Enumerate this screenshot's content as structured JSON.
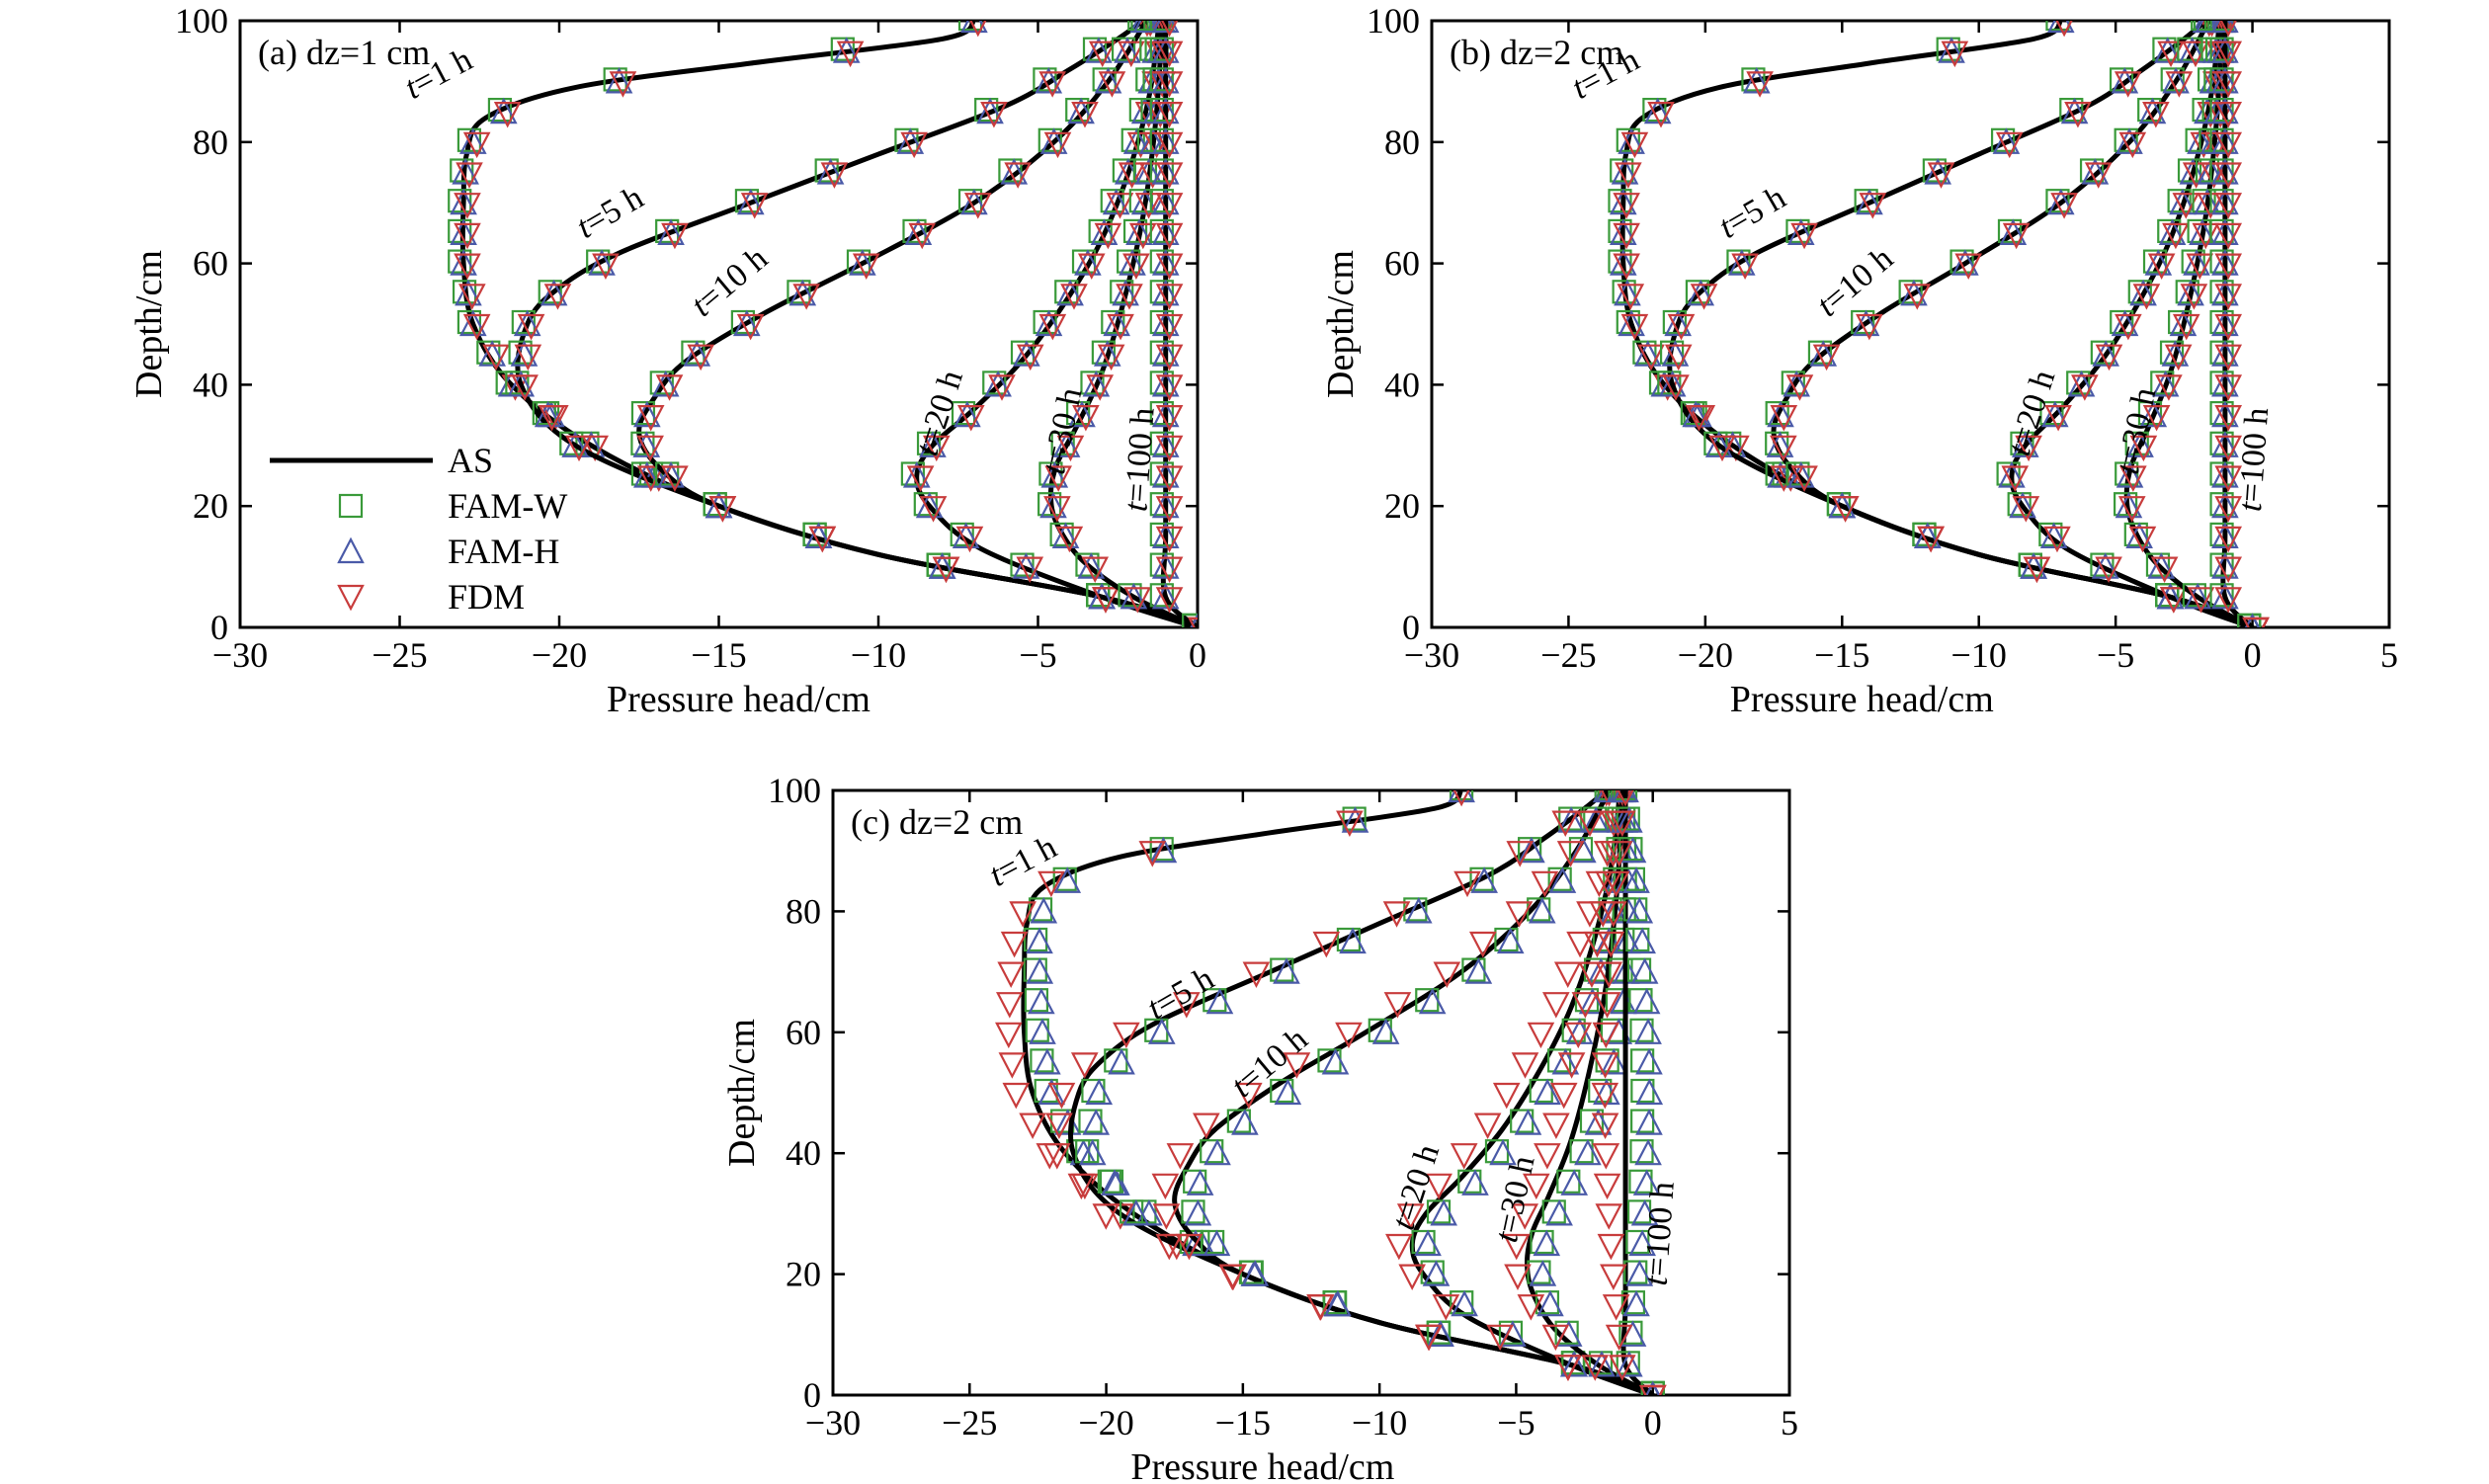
{
  "colors": {
    "AS": "#000000",
    "FAM-W": "#3a9a3a",
    "FAM-H": "#4a5aa8",
    "FDM": "#c83c3c"
  },
  "legend": [
    {
      "key": "AS",
      "label": "AS",
      "marker": "line"
    },
    {
      "key": "FAM-W",
      "label": "FAM-W",
      "marker": "square"
    },
    {
      "key": "FAM-H",
      "label": "FAM-H",
      "marker": "triangle-up"
    },
    {
      "key": "FDM",
      "label": "FDM",
      "marker": "triangle-down"
    }
  ],
  "chart_data": [
    {
      "type": "line",
      "panel": "a",
      "title": "(a) dz=1 cm",
      "xlabel": "Pressure head/cm",
      "ylabel": "Depth/cm",
      "xlim": [
        -30,
        0
      ],
      "ylim": [
        0,
        100
      ],
      "xticks": [
        "−30",
        "−25",
        "−20",
        "−15",
        "−10",
        "−5",
        "0"
      ],
      "yticks": [
        "0",
        "20",
        "40",
        "60",
        "80",
        "100"
      ],
      "curve_labels": [
        "t=1 h",
        "t=5 h",
        "t=10 h",
        "t=20 h",
        "t=30 h",
        "t=100 h"
      ],
      "series": [
        {
          "name": "t=1 h",
          "points": [
            [
              0,
              0
            ],
            [
              -3,
              5
            ],
            [
              -10,
              12
            ],
            [
              -15,
              20
            ],
            [
              -19,
              30
            ],
            [
              -21.5,
              40
            ],
            [
              -22.7,
              50
            ],
            [
              -23,
              60
            ],
            [
              -23,
              70
            ],
            [
              -22.9,
              78
            ],
            [
              -22.3,
              84
            ],
            [
              -19.5,
              89
            ],
            [
              -14,
              93
            ],
            [
              -8,
              97
            ],
            [
              -7,
              100
            ]
          ]
        },
        {
          "name": "t=5 h",
          "points": [
            [
              0,
              0
            ],
            [
              -3,
              5
            ],
            [
              -10,
              12
            ],
            [
              -15,
              20
            ],
            [
              -19.5,
              30
            ],
            [
              -21.2,
              40
            ],
            [
              -21,
              50
            ],
            [
              -20,
              56
            ],
            [
              -18,
              62
            ],
            [
              -14,
              70
            ],
            [
              -10,
              78
            ],
            [
              -6,
              86
            ],
            [
              -4,
              92
            ],
            [
              -2.5,
              97
            ],
            [
              -1.7,
              100
            ]
          ]
        },
        {
          "name": "t=10 h",
          "points": [
            [
              0,
              0
            ],
            [
              -3,
              5
            ],
            [
              -10,
              12
            ],
            [
              -15,
              20
            ],
            [
              -16.8,
              26
            ],
            [
              -17.5,
              32
            ],
            [
              -17,
              38
            ],
            [
              -16,
              44
            ],
            [
              -13.5,
              52
            ],
            [
              -10.5,
              60
            ],
            [
              -7,
              70
            ],
            [
              -4.5,
              80
            ],
            [
              -2.8,
              90
            ],
            [
              -1.6,
              100
            ]
          ]
        },
        {
          "name": "t=20 h",
          "points": [
            [
              0,
              0
            ],
            [
              -3,
              5
            ],
            [
              -6.8,
              13
            ],
            [
              -8.4,
              20
            ],
            [
              -8.8,
              25
            ],
            [
              -8.3,
              30
            ],
            [
              -7,
              36
            ],
            [
              -5.5,
              44
            ],
            [
              -4.1,
              54
            ],
            [
              -3,
              64
            ],
            [
              -2.1,
              76
            ],
            [
              -1.5,
              88
            ],
            [
              -1.2,
              100
            ]
          ]
        },
        {
          "name": "t=30 h",
          "points": [
            [
              0,
              0
            ],
            [
              -2,
              5
            ],
            [
              -3.6,
              11
            ],
            [
              -4.4,
              17
            ],
            [
              -4.6,
              22
            ],
            [
              -4.4,
              27
            ],
            [
              -3.8,
              33
            ],
            [
              -3,
              42
            ],
            [
              -2.3,
              54
            ],
            [
              -1.7,
              68
            ],
            [
              -1.3,
              84
            ],
            [
              -1.1,
              100
            ]
          ]
        },
        {
          "name": "t=100 h",
          "points": [
            [
              0,
              0
            ],
            [
              -1,
              5
            ],
            [
              -1,
              15
            ],
            [
              -1,
              30
            ],
            [
              -1,
              50
            ],
            [
              -1,
              70
            ],
            [
              -1,
              85
            ],
            [
              -1,
              100
            ]
          ]
        }
      ]
    },
    {
      "type": "line",
      "panel": "b",
      "title": "(b) dz=2 cm",
      "xlabel": "Pressure head/cm",
      "ylabel": "Depth/cm",
      "xlim": [
        -30,
        5
      ],
      "ylim": [
        0,
        100
      ],
      "xticks": [
        "−30",
        "−25",
        "−20",
        "−15",
        "−10",
        "−5",
        "0",
        "5"
      ],
      "yticks": [
        "0",
        "20",
        "40",
        "60",
        "80",
        "100"
      ],
      "curve_labels": [
        "t=1 h",
        "t=5 h",
        "t=10 h",
        "t=20 h",
        "t=30 h",
        "t=100 h"
      ],
      "series": [
        {
          "name": "t=1 h",
          "points": [
            [
              0,
              0
            ],
            [
              -3,
              5
            ],
            [
              -10,
              12
            ],
            [
              -15,
              20
            ],
            [
              -19,
              30
            ],
            [
              -21.5,
              40
            ],
            [
              -22.7,
              50
            ],
            [
              -23,
              60
            ],
            [
              -23,
              70
            ],
            [
              -22.9,
              78
            ],
            [
              -22.3,
              84
            ],
            [
              -19.5,
              89
            ],
            [
              -14,
              93
            ],
            [
              -8,
              97
            ],
            [
              -7,
              100
            ]
          ]
        },
        {
          "name": "t=5 h",
          "points": [
            [
              0,
              0
            ],
            [
              -3,
              5
            ],
            [
              -10,
              12
            ],
            [
              -15,
              20
            ],
            [
              -19.5,
              30
            ],
            [
              -21.2,
              40
            ],
            [
              -21,
              50
            ],
            [
              -20,
              56
            ],
            [
              -18,
              62
            ],
            [
              -14,
              70
            ],
            [
              -10,
              78
            ],
            [
              -6,
              86
            ],
            [
              -4,
              92
            ],
            [
              -2.5,
              97
            ],
            [
              -1.7,
              100
            ]
          ]
        },
        {
          "name": "t=10 h",
          "points": [
            [
              0,
              0
            ],
            [
              -3,
              5
            ],
            [
              -10,
              12
            ],
            [
              -15,
              20
            ],
            [
              -16.8,
              26
            ],
            [
              -17.5,
              32
            ],
            [
              -17,
              38
            ],
            [
              -16,
              44
            ],
            [
              -13.5,
              52
            ],
            [
              -10.5,
              60
            ],
            [
              -7,
              70
            ],
            [
              -4.5,
              80
            ],
            [
              -2.8,
              90
            ],
            [
              -1.6,
              100
            ]
          ]
        },
        {
          "name": "t=20 h",
          "points": [
            [
              0,
              0
            ],
            [
              -3,
              5
            ],
            [
              -6.8,
              13
            ],
            [
              -8.4,
              20
            ],
            [
              -8.8,
              25
            ],
            [
              -8.3,
              30
            ],
            [
              -7,
              36
            ],
            [
              -5.5,
              44
            ],
            [
              -4.1,
              54
            ],
            [
              -3,
              64
            ],
            [
              -2.1,
              76
            ],
            [
              -1.5,
              88
            ],
            [
              -1.2,
              100
            ]
          ]
        },
        {
          "name": "t=30 h",
          "points": [
            [
              0,
              0
            ],
            [
              -2,
              5
            ],
            [
              -3.6,
              11
            ],
            [
              -4.4,
              17
            ],
            [
              -4.6,
              22
            ],
            [
              -4.4,
              27
            ],
            [
              -3.8,
              33
            ],
            [
              -3,
              42
            ],
            [
              -2.3,
              54
            ],
            [
              -1.7,
              68
            ],
            [
              -1.3,
              84
            ],
            [
              -1.1,
              100
            ]
          ]
        },
        {
          "name": "t=100 h",
          "points": [
            [
              0,
              0
            ],
            [
              -1,
              5
            ],
            [
              -1,
              15
            ],
            [
              -1,
              30
            ],
            [
              -1,
              50
            ],
            [
              -1,
              70
            ],
            [
              -1,
              85
            ],
            [
              -1,
              100
            ]
          ]
        }
      ]
    },
    {
      "type": "line",
      "panel": "c",
      "title": "(c) dz=2 cm",
      "xlabel": "Pressure head/cm",
      "ylabel": "Depth/cm",
      "xlim": [
        -30,
        5
      ],
      "ylim": [
        0,
        100
      ],
      "xticks": [
        "−30",
        "−25",
        "−20",
        "−15",
        "−10",
        "−5",
        "0",
        "5"
      ],
      "yticks": [
        "0",
        "20",
        "40",
        "60",
        "80",
        "100"
      ],
      "curve_labels": [
        "t=1 h",
        "t=5 h",
        "t=10 h",
        "t=20 h",
        "t=30 h",
        "t=100 h"
      ],
      "series": [
        {
          "name": "t=1 h",
          "points": [
            [
              0,
              0
            ],
            [
              -3,
              5
            ],
            [
              -10,
              12
            ],
            [
              -15,
              20
            ],
            [
              -19,
              30
            ],
            [
              -21.5,
              40
            ],
            [
              -22.7,
              50
            ],
            [
              -23,
              60
            ],
            [
              -23,
              70
            ],
            [
              -22.9,
              78
            ],
            [
              -22.3,
              84
            ],
            [
              -19.5,
              89
            ],
            [
              -14,
              93
            ],
            [
              -8,
              97
            ],
            [
              -7,
              100
            ]
          ]
        },
        {
          "name": "t=5 h",
          "points": [
            [
              0,
              0
            ],
            [
              -3,
              5
            ],
            [
              -10,
              12
            ],
            [
              -15,
              20
            ],
            [
              -19.5,
              30
            ],
            [
              -21.2,
              40
            ],
            [
              -21,
              50
            ],
            [
              -20,
              56
            ],
            [
              -18,
              62
            ],
            [
              -14,
              70
            ],
            [
              -10,
              78
            ],
            [
              -6,
              86
            ],
            [
              -4,
              92
            ],
            [
              -2.5,
              97
            ],
            [
              -1.7,
              100
            ]
          ]
        },
        {
          "name": "t=10 h",
          "points": [
            [
              0,
              0
            ],
            [
              -3,
              5
            ],
            [
              -10,
              12
            ],
            [
              -15,
              20
            ],
            [
              -16.8,
              26
            ],
            [
              -17.5,
              32
            ],
            [
              -17,
              38
            ],
            [
              -16,
              44
            ],
            [
              -13.5,
              52
            ],
            [
              -10.5,
              60
            ],
            [
              -7,
              70
            ],
            [
              -4.5,
              80
            ],
            [
              -2.8,
              90
            ],
            [
              -1.6,
              100
            ]
          ]
        },
        {
          "name": "t=20 h",
          "points": [
            [
              0,
              0
            ],
            [
              -3,
              5
            ],
            [
              -6.8,
              13
            ],
            [
              -8.4,
              20
            ],
            [
              -8.8,
              25
            ],
            [
              -8.3,
              30
            ],
            [
              -7,
              36
            ],
            [
              -5.5,
              44
            ],
            [
              -4.1,
              54
            ],
            [
              -3,
              64
            ],
            [
              -2.1,
              76
            ],
            [
              -1.5,
              88
            ],
            [
              -1.2,
              100
            ]
          ]
        },
        {
          "name": "t=30 h",
          "points": [
            [
              0,
              0
            ],
            [
              -2,
              5
            ],
            [
              -3.6,
              11
            ],
            [
              -4.4,
              17
            ],
            [
              -4.6,
              22
            ],
            [
              -4.4,
              27
            ],
            [
              -3.8,
              33
            ],
            [
              -3,
              42
            ],
            [
              -2.3,
              54
            ],
            [
              -1.7,
              68
            ],
            [
              -1.3,
              84
            ],
            [
              -1.1,
              100
            ]
          ]
        },
        {
          "name": "t=100 h",
          "points": [
            [
              0,
              0
            ],
            [
              -1,
              5
            ],
            [
              -1,
              15
            ],
            [
              -1,
              30
            ],
            [
              -1,
              50
            ],
            [
              -1,
              70
            ],
            [
              -1,
              85
            ],
            [
              -1,
              100
            ]
          ]
        }
      ]
    }
  ]
}
